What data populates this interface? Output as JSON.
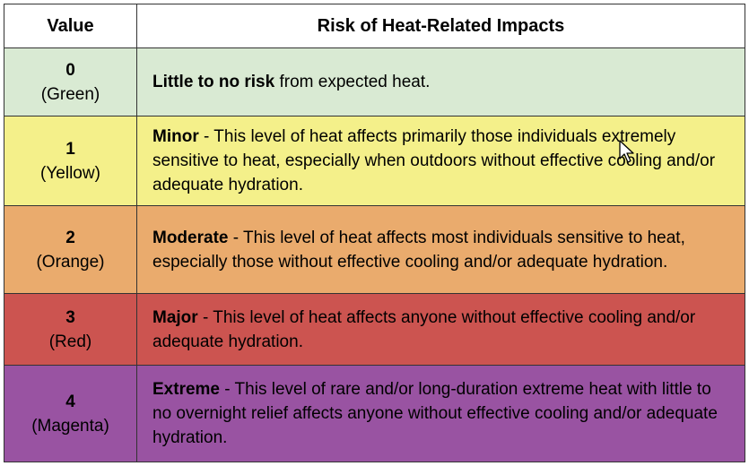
{
  "header": {
    "value_label": "Value",
    "risk_label": "Risk of Heat-Related Impacts"
  },
  "rows": [
    {
      "value": "0",
      "color_name": "(Green)",
      "level": "Little to no risk",
      "separator": " ",
      "text": "from expected heat.",
      "bg": "#d9ead3"
    },
    {
      "value": "1",
      "color_name": "(Yellow)",
      "level": "Minor",
      "separator": " - ",
      "text": "This level of heat affects primarily those individuals extremely sensitive to heat, especially when outdoors without effective cooling and/or adequate hydration.",
      "bg": "#f4f08a"
    },
    {
      "value": "2",
      "color_name": "(Orange)",
      "level": "Moderate",
      "separator": " - ",
      "text": "This level of heat affects most individuals sensitive to heat, especially those without effective cooling and/or adequate hydration.",
      "bg": "#eaab6d"
    },
    {
      "value": "3",
      "color_name": "(Red)",
      "level": "Major",
      "separator": " - ",
      "text": "This level of heat affects anyone without effective cooling and/or adequate hydration.",
      "bg": "#cc5450"
    },
    {
      "value": "4",
      "color_name": "(Magenta)",
      "level": "Extreme",
      "separator": " - ",
      "text": "This level of rare and/or long-duration extreme heat with little to no overnight relief affects anyone without effective cooling and/or adequate hydration.",
      "bg": "#9953a2"
    }
  ],
  "cursor": {
    "icon": "mouse-pointer-icon"
  }
}
